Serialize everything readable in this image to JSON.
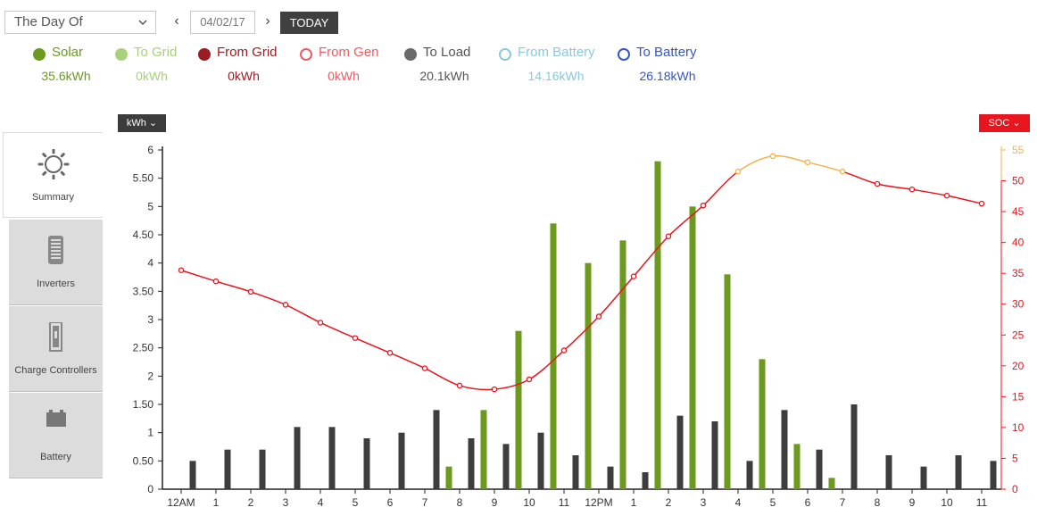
{
  "toolbar": {
    "period": "The Day Of",
    "prev": "‹",
    "next": "›",
    "date": "04/02/17",
    "today": "TODAY"
  },
  "legend": [
    {
      "key": "solar",
      "label": "Solar",
      "value": "35.6kWh",
      "color": "#6b9a1e",
      "filled": true
    },
    {
      "key": "to_grid",
      "label": "To Grid",
      "value": "0kWh",
      "color": "#a9d07a",
      "filled": true
    },
    {
      "key": "from_grid",
      "label": "From Grid",
      "value": "0kWh",
      "color": "#9b1c22",
      "filled": true
    },
    {
      "key": "from_gen",
      "label": "From Gen",
      "value": "0kWh",
      "color": "#ef5b63",
      "filled": false
    },
    {
      "key": "to_load",
      "label": "To Load",
      "value": "20.1kWh",
      "color": "#6a6a6a",
      "filled": true
    },
    {
      "key": "from_battery",
      "label": "From Battery",
      "value": "14.16kWh",
      "color": "#8bc8e0",
      "filled": false
    },
    {
      "key": "to_battery",
      "label": "To Battery",
      "value": "26.18kWh",
      "color": "#3556c4",
      "filled": false
    }
  ],
  "sidebar": {
    "items": [
      {
        "label": "Summary",
        "icon": "sun-icon",
        "active": true
      },
      {
        "label": "Inverters",
        "icon": "inverter-icon",
        "active": false
      },
      {
        "label": "Charge Controllers",
        "icon": "charge-controller-icon",
        "active": false
      },
      {
        "label": "Battery",
        "icon": "battery-icon",
        "active": false
      }
    ]
  },
  "chart_controls": {
    "unit": "kWh",
    "soc": "SOC"
  },
  "chart_data": {
    "type": "bar",
    "categories": [
      "12AM",
      "1",
      "2",
      "3",
      "4",
      "5",
      "6",
      "7",
      "8",
      "9",
      "10",
      "11",
      "12PM",
      "1",
      "2",
      "3",
      "4",
      "5",
      "6",
      "7",
      "8",
      "9",
      "10",
      "11"
    ],
    "y_left": {
      "min": 0,
      "max": 6,
      "ticks": [
        "0",
        "0.50",
        "1",
        "1.50",
        "2",
        "2.50",
        "3",
        "3.50",
        "4",
        "4.50",
        "5",
        "5.50",
        "6"
      ]
    },
    "y_right": {
      "min": 0,
      "max": 55,
      "ticks": [
        "0",
        "5",
        "10",
        "15",
        "20",
        "25",
        "30",
        "35",
        "40",
        "45",
        "50",
        "55"
      ]
    },
    "series": [
      {
        "name": "Solar",
        "color": "#6b9a1e",
        "values": [
          0,
          0,
          0,
          0,
          0,
          0,
          0,
          0,
          0.4,
          1.4,
          2.8,
          4.7,
          4.0,
          4.4,
          5.8,
          5.0,
          3.8,
          2.3,
          0.8,
          0.2,
          0,
          0,
          0,
          0
        ]
      },
      {
        "name": "To Load",
        "color": "#3d3d3d",
        "values": [
          0.5,
          0.7,
          0.7,
          1.1,
          1.1,
          0.9,
          1.0,
          1.4,
          0.9,
          0.8,
          1.0,
          0.6,
          0.4,
          0.3,
          1.3,
          1.2,
          0.5,
          1.4,
          0.7,
          1.5,
          0.6,
          0.4,
          0.6,
          0.5
        ]
      },
      {
        "name": "SOC",
        "color": "#e8141e",
        "values": [
          35.5,
          33.7,
          32,
          29.9,
          27,
          24.5,
          22.1,
          19.6,
          16.8,
          16.2,
          17.8,
          22.5,
          28,
          34.5,
          41,
          46,
          51.5,
          54,
          53,
          51.5,
          49.5,
          48.6,
          47.6,
          46.3
        ]
      }
    ]
  }
}
